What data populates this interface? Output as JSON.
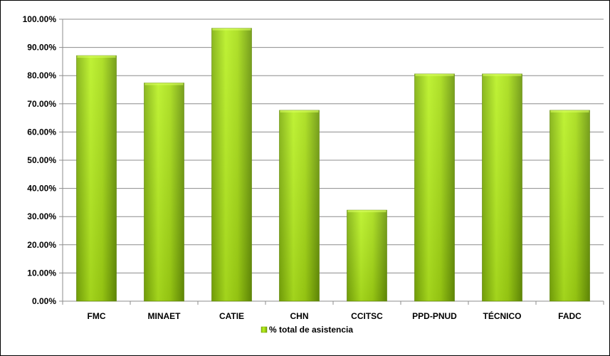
{
  "chart_data": {
    "type": "bar",
    "categories": [
      "FMC",
      "MINAET",
      "CATIE",
      "CHN",
      "CCITSC",
      "PPD-PNUD",
      "TÉCNICO",
      "FADC"
    ],
    "series": [
      {
        "name": "% total de asistencia",
        "values": [
          87.1,
          77.4,
          96.8,
          67.7,
          32.3,
          80.6,
          80.6,
          67.7
        ]
      }
    ],
    "ylim": [
      0,
      100
    ],
    "yticks": [
      "0.00%",
      "10.00%",
      "20.00%",
      "30.00%",
      "40.00%",
      "50.00%",
      "60.00%",
      "70.00%",
      "80.00%",
      "90.00%",
      "100.00%"
    ],
    "grid": true,
    "legend_position": "bottom",
    "colors": {
      "bar_light": "#b5ee1c",
      "bar_dark": "#6e9a08",
      "grid": "#8c8c8c",
      "axis": "#8c8c8c"
    }
  }
}
